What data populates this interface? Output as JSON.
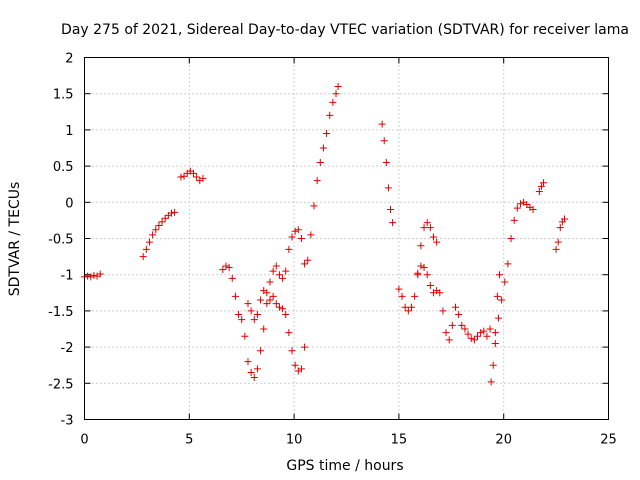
{
  "chart_data": {
    "type": "scatter",
    "title": "Day 275 of 2021, Sidereal Day-to-day VTEC variation (SDTVAR) for receiver lama",
    "xlabel": "GPS time / hours",
    "ylabel": "SDTVAR / TECUs",
    "xlim": [
      0,
      25
    ],
    "ylim": [
      -3,
      2
    ],
    "xticks": [
      0,
      5,
      10,
      15,
      20,
      25
    ],
    "yticks": [
      -3,
      -2.5,
      -2,
      -1.5,
      -1,
      -0.5,
      0,
      0.5,
      1,
      1.5,
      2
    ],
    "grid": true,
    "marker": "plus",
    "color": "#e00000",
    "series": [
      {
        "name": "SDTVAR",
        "points": [
          [
            0.0,
            -1.03
          ],
          [
            0.15,
            -1.02
          ],
          [
            0.3,
            -1.03
          ],
          [
            0.45,
            -1.01
          ],
          [
            0.6,
            -1.02
          ],
          [
            0.75,
            -0.99
          ],
          [
            2.8,
            -0.75
          ],
          [
            2.95,
            -0.65
          ],
          [
            3.1,
            -0.55
          ],
          [
            3.25,
            -0.45
          ],
          [
            3.4,
            -0.38
          ],
          [
            3.55,
            -0.32
          ],
          [
            3.7,
            -0.27
          ],
          [
            3.85,
            -0.22
          ],
          [
            4.0,
            -0.18
          ],
          [
            4.15,
            -0.15
          ],
          [
            4.3,
            -0.14
          ],
          [
            4.6,
            0.35
          ],
          [
            4.75,
            0.36
          ],
          [
            4.9,
            0.4
          ],
          [
            5.05,
            0.43
          ],
          [
            5.2,
            0.4
          ],
          [
            5.35,
            0.35
          ],
          [
            5.5,
            0.3
          ],
          [
            5.65,
            0.33
          ],
          [
            6.6,
            -0.93
          ],
          [
            6.75,
            -0.88
          ],
          [
            6.9,
            -0.9
          ],
          [
            7.05,
            -1.05
          ],
          [
            7.2,
            -1.3
          ],
          [
            7.35,
            -1.55
          ],
          [
            7.5,
            -1.62
          ],
          [
            7.65,
            -1.85
          ],
          [
            7.8,
            -2.2
          ],
          [
            7.95,
            -2.35
          ],
          [
            8.1,
            -2.42
          ],
          [
            8.25,
            -2.3
          ],
          [
            8.4,
            -2.05
          ],
          [
            8.55,
            -1.75
          ],
          [
            8.7,
            -1.4
          ],
          [
            8.85,
            -1.1
          ],
          [
            9.0,
            -0.95
          ],
          [
            9.15,
            -0.88
          ],
          [
            9.3,
            -1.0
          ],
          [
            9.45,
            -1.05
          ],
          [
            9.6,
            -0.95
          ],
          [
            9.75,
            -0.65
          ],
          [
            9.9,
            -0.48
          ],
          [
            10.05,
            -0.4
          ],
          [
            10.2,
            -0.38
          ],
          [
            10.35,
            -0.5
          ],
          [
            10.5,
            -0.85
          ],
          [
            10.65,
            -0.8
          ],
          [
            10.8,
            -0.45
          ],
          [
            10.95,
            -0.05
          ],
          [
            11.1,
            0.3
          ],
          [
            11.25,
            0.55
          ],
          [
            11.4,
            0.75
          ],
          [
            11.55,
            0.95
          ],
          [
            11.7,
            1.2
          ],
          [
            11.85,
            1.38
          ],
          [
            12.0,
            1.5
          ],
          [
            12.1,
            1.6
          ],
          [
            7.8,
            -1.4
          ],
          [
            7.95,
            -1.5
          ],
          [
            8.1,
            -1.62
          ],
          [
            8.25,
            -1.55
          ],
          [
            8.4,
            -1.35
          ],
          [
            8.55,
            -1.22
          ],
          [
            8.7,
            -1.25
          ],
          [
            8.85,
            -1.35
          ],
          [
            9.0,
            -1.3
          ],
          [
            9.15,
            -1.4
          ],
          [
            9.3,
            -1.45
          ],
          [
            9.45,
            -1.47
          ],
          [
            9.6,
            -1.55
          ],
          [
            9.75,
            -1.8
          ],
          [
            9.9,
            -2.05
          ],
          [
            10.05,
            -2.25
          ],
          [
            10.2,
            -2.33
          ],
          [
            10.35,
            -2.3
          ],
          [
            10.5,
            -2.0
          ],
          [
            14.2,
            1.08
          ],
          [
            14.3,
            0.85
          ],
          [
            14.4,
            0.55
          ],
          [
            14.5,
            0.2
          ],
          [
            14.6,
            -0.1
          ],
          [
            14.7,
            -0.28
          ],
          [
            15.0,
            -1.2
          ],
          [
            15.15,
            -1.3
          ],
          [
            15.3,
            -1.45
          ],
          [
            15.45,
            -1.5
          ],
          [
            15.6,
            -1.45
          ],
          [
            15.75,
            -1.3
          ],
          [
            15.9,
            -1.0
          ],
          [
            16.05,
            -0.6
          ],
          [
            16.2,
            -0.35
          ],
          [
            16.35,
            -0.28
          ],
          [
            16.5,
            -0.35
          ],
          [
            16.65,
            -0.48
          ],
          [
            16.8,
            -0.55
          ],
          [
            15.9,
            -0.98
          ],
          [
            16.05,
            -0.88
          ],
          [
            16.2,
            -0.9
          ],
          [
            16.35,
            -1.0
          ],
          [
            16.5,
            -1.15
          ],
          [
            16.65,
            -1.25
          ],
          [
            16.8,
            -1.22
          ],
          [
            16.95,
            -1.25
          ],
          [
            17.1,
            -1.5
          ],
          [
            17.25,
            -1.8
          ],
          [
            17.4,
            -1.9
          ],
          [
            17.55,
            -1.7
          ],
          [
            17.7,
            -1.45
          ],
          [
            17.85,
            -1.55
          ],
          [
            18.0,
            -1.7
          ],
          [
            18.15,
            -1.75
          ],
          [
            18.3,
            -1.82
          ],
          [
            18.45,
            -1.88
          ],
          [
            18.6,
            -1.9
          ],
          [
            18.75,
            -1.85
          ],
          [
            18.9,
            -1.8
          ],
          [
            19.05,
            -1.78
          ],
          [
            19.2,
            -1.85
          ],
          [
            19.35,
            -1.75
          ],
          [
            19.4,
            -2.48
          ],
          [
            19.5,
            -2.25
          ],
          [
            19.6,
            -1.8
          ],
          [
            19.7,
            -1.3
          ],
          [
            19.8,
            -1.0
          ],
          [
            19.6,
            -1.95
          ],
          [
            19.75,
            -1.6
          ],
          [
            19.9,
            -1.35
          ],
          [
            20.05,
            -1.1
          ],
          [
            20.2,
            -0.85
          ],
          [
            20.35,
            -0.5
          ],
          [
            20.5,
            -0.25
          ],
          [
            20.65,
            -0.08
          ],
          [
            20.8,
            -0.02
          ],
          [
            20.95,
            0.0
          ],
          [
            21.1,
            -0.03
          ],
          [
            21.25,
            -0.07
          ],
          [
            21.4,
            -0.1
          ],
          [
            21.7,
            0.15
          ],
          [
            21.8,
            0.22
          ],
          [
            21.9,
            0.27
          ],
          [
            22.5,
            -0.65
          ],
          [
            22.6,
            -0.55
          ],
          [
            22.7,
            -0.35
          ],
          [
            22.8,
            -0.27
          ],
          [
            22.9,
            -0.23
          ]
        ]
      }
    ]
  }
}
